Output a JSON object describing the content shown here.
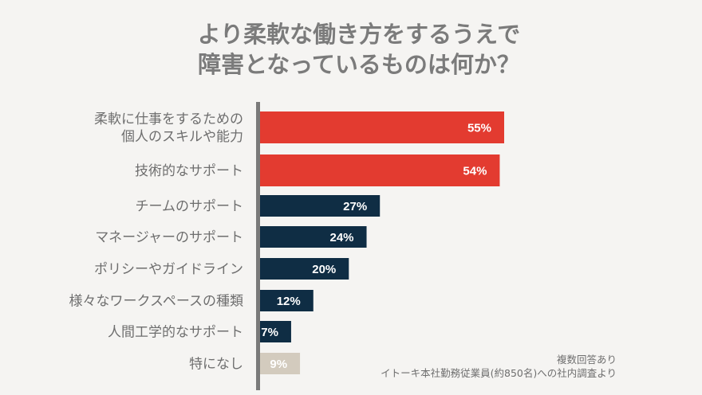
{
  "chart_data": {
    "type": "bar",
    "orientation": "horizontal",
    "title_lines": [
      "より柔軟な働き方をするうえで",
      "障害となっているものは何か？"
    ],
    "categories": [
      [
        "柔軟に仕事をするための",
        "個人のスキルや能力"
      ],
      [
        "技術的なサポート"
      ],
      [
        "チームのサポート"
      ],
      [
        "マネージャーのサポート"
      ],
      [
        "ポリシーやガイドライン"
      ],
      [
        "様々なワークスペースの種類"
      ],
      [
        "人間工学的なサポート"
      ],
      [
        "特になし"
      ]
    ],
    "values": [
      55,
      54,
      27,
      24,
      20,
      12,
      7,
      9
    ],
    "value_labels": [
      "55%",
      "54%",
      "27%",
      "24%",
      "20%",
      "12%",
      "7%",
      "9%"
    ],
    "bar_colors": [
      "#e33b30",
      "#e33b30",
      "#0f2d44",
      "#0f2d44",
      "#0f2d44",
      "#0f2d44",
      "#0f2d44",
      "#d3cbbe"
    ],
    "unit": "%",
    "xlim": [
      0,
      100
    ],
    "grid": false,
    "legend": "none"
  },
  "notes": [
    "複数回答あり",
    "イトーキ本社勤務従業員(約850名)への社内調査より"
  ],
  "colors": {
    "background": "#f5f4f2",
    "axis": "#7a7a7a",
    "text": "#6e6e6e"
  }
}
